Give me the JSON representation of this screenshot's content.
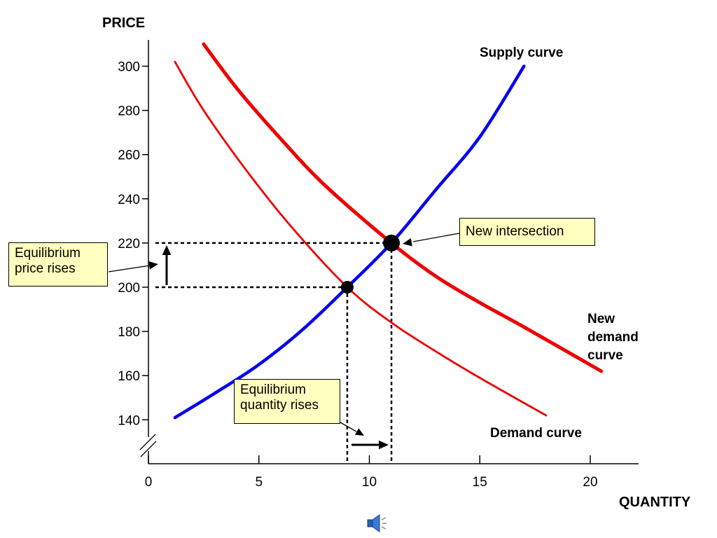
{
  "chart_data": {
    "type": "line",
    "ylabel": "PRICE",
    "xlabel": "QUANTITY",
    "xlim": [
      0,
      22
    ],
    "ylim": [
      126,
      316
    ],
    "x_ticks": [
      0,
      5,
      10,
      15,
      20
    ],
    "y_ticks": [
      140,
      160,
      180,
      200,
      220,
      240,
      260,
      280,
      300
    ],
    "y_axis_break": true,
    "series": [
      {
        "name": "Supply curve",
        "color": "#0000ee",
        "points": [
          [
            1.2,
            141
          ],
          [
            3,
            152
          ],
          [
            5,
            165
          ],
          [
            7,
            181
          ],
          [
            9,
            200
          ],
          [
            11,
            220
          ],
          [
            13,
            244
          ],
          [
            15,
            268
          ],
          [
            17,
            300
          ]
        ]
      },
      {
        "name": "Demand curve",
        "color": "#ee0000",
        "points": [
          [
            1.2,
            302
          ],
          [
            2.5,
            280
          ],
          [
            4.5,
            252
          ],
          [
            6.5,
            227
          ],
          [
            9,
            200
          ],
          [
            11,
            184
          ],
          [
            13,
            171
          ],
          [
            15,
            159
          ],
          [
            18,
            142
          ]
        ]
      },
      {
        "name": "New demand curve",
        "color": "#ee0000",
        "points": [
          [
            2.5,
            310
          ],
          [
            4,
            290
          ],
          [
            6,
            267
          ],
          [
            8,
            246
          ],
          [
            11,
            220
          ],
          [
            13,
            205
          ],
          [
            15,
            193
          ],
          [
            17,
            182
          ],
          [
            20.5,
            162
          ]
        ]
      }
    ],
    "equilibria": [
      {
        "x": 9,
        "y": 200
      },
      {
        "x": 11,
        "y": 220
      }
    ],
    "labels": {
      "supply": "Supply curve",
      "demand": "Demand curve",
      "new_demand": [
        "New",
        "demand",
        "curve"
      ]
    },
    "annotations": {
      "new_intersection": "New intersection",
      "price_rises": [
        "Equilibrium",
        "price rises"
      ],
      "quantity_rises": [
        "Equilibrium",
        "quantity rises"
      ]
    }
  },
  "colors": {
    "note_fill": "#ffffc0",
    "supply": "#0000ee",
    "demand": "#ee0000"
  },
  "icons": {
    "sound": "speaker-icon"
  }
}
